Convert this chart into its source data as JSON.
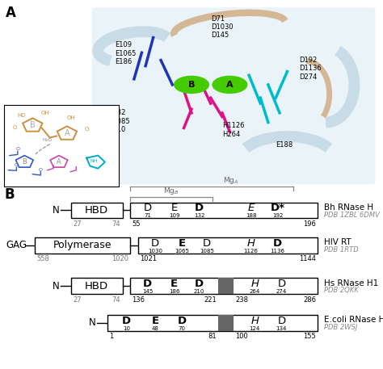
{
  "background_color": "#ffffff",
  "rows": [
    {
      "name": "Bh RNase H",
      "pdb": "PDB 1ZBL 6DMV",
      "has_HBD": true,
      "HBD_label": "HBD",
      "HBD_nums": [
        "27",
        "74"
      ],
      "cat_bottom_nums": [
        "55",
        "196"
      ],
      "residues": [
        {
          "letter": "D",
          "bold": false,
          "italic": false,
          "num": "71"
        },
        {
          "letter": "E",
          "bold": false,
          "italic": false,
          "num": "109"
        },
        {
          "letter": "D",
          "bold": true,
          "italic": false,
          "num": "132"
        },
        {
          "letter": "E",
          "bold": false,
          "italic": true,
          "num": "188"
        },
        {
          "letter": "D*",
          "bold": true,
          "italic": false,
          "num": "192"
        }
      ],
      "has_divider": false,
      "has_mg": true,
      "mg_b_res": [
        0,
        2
      ],
      "mg_a_res": [
        0,
        4
      ],
      "prefix": "N",
      "polymerase": false
    },
    {
      "name": "HIV RT",
      "pdb": "PDB 1RTD",
      "has_HBD": false,
      "poly_label": "Polymerase",
      "poly_nums": [
        "558",
        "1020"
      ],
      "cat_bottom_nums": [
        "1021",
        "1144"
      ],
      "residues": [
        {
          "letter": "D",
          "bold": false,
          "italic": false,
          "num": "1030"
        },
        {
          "letter": "E",
          "bold": true,
          "italic": false,
          "num": "1065"
        },
        {
          "letter": "D",
          "bold": false,
          "italic": false,
          "num": "1085"
        },
        {
          "letter": "H",
          "bold": false,
          "italic": true,
          "num": "1126"
        },
        {
          "letter": "D",
          "bold": true,
          "italic": false,
          "num": "1136"
        }
      ],
      "has_divider": false,
      "has_mg": false,
      "prefix": "GAG",
      "polymerase": true
    },
    {
      "name": "Hs RNase H1",
      "pdb": "PDB 2QKK",
      "has_HBD": true,
      "HBD_label": "HBD",
      "HBD_nums": [
        "27",
        "74"
      ],
      "cat_bottom_nums": [
        "136",
        "286"
      ],
      "divider_nums": [
        "221",
        "238"
      ],
      "residues": [
        {
          "letter": "D",
          "bold": true,
          "italic": false,
          "num": "145"
        },
        {
          "letter": "E",
          "bold": true,
          "italic": false,
          "num": "186"
        },
        {
          "letter": "D",
          "bold": true,
          "italic": false,
          "num": "210"
        },
        {
          "letter": "H",
          "bold": false,
          "italic": true,
          "num": "264"
        },
        {
          "letter": "D",
          "bold": false,
          "italic": false,
          "num": "274"
        }
      ],
      "has_divider": true,
      "has_mg": false,
      "prefix": "N",
      "polymerase": false
    },
    {
      "name": "E.coli RNase H",
      "pdb": "PDB 2WSJ",
      "has_HBD": false,
      "cat_bottom_nums": [
        "1",
        "155"
      ],
      "divider_nums": [
        "81",
        "100"
      ],
      "residues": [
        {
          "letter": "D",
          "bold": true,
          "italic": false,
          "num": "10"
        },
        {
          "letter": "E",
          "bold": true,
          "italic": false,
          "num": "48"
        },
        {
          "letter": "D",
          "bold": true,
          "italic": false,
          "num": "70"
        },
        {
          "letter": "H",
          "bold": false,
          "italic": true,
          "num": "124"
        },
        {
          "letter": "D",
          "bold": false,
          "italic": false,
          "num": "134"
        }
      ],
      "has_divider": true,
      "has_mg": false,
      "prefix": "N",
      "polymerase": false,
      "no_HBD_small": true
    }
  ]
}
